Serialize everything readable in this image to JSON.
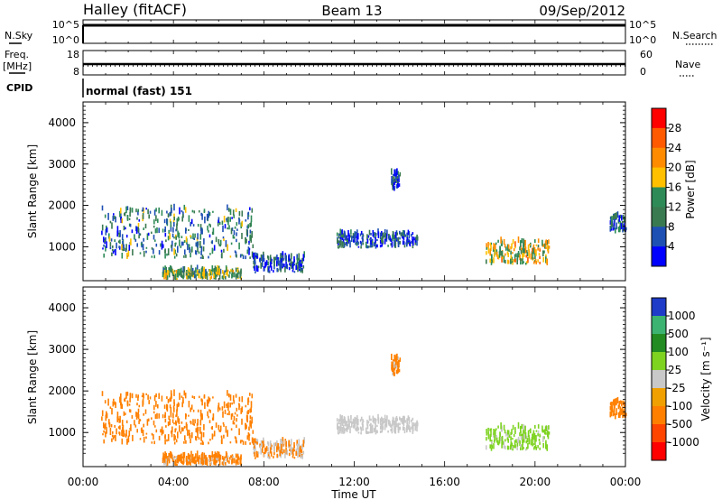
{
  "header": {
    "station": "Halley (fitACF)",
    "beam": "Beam 13",
    "date": "09/Sep/2012"
  },
  "params": {
    "nsky_label": "N.Sky",
    "nsky_ticks": [
      "10^5",
      "10^0"
    ],
    "nsearch_label": "N.Search",
    "nsearch_ticks": [
      "10^5",
      "10^0"
    ],
    "freq_label": "Freq.",
    "freq_unit": "[MHz]",
    "freq_ticks": [
      "18",
      "8"
    ],
    "nave_label": "Nave",
    "nave_ticks": [
      "60",
      "0"
    ],
    "cpid_label": "CPID",
    "cpid_value": "normal (fast) 151"
  },
  "axes": {
    "ylabel": "Slant Range [km]",
    "y_ticks": [
      "4000",
      "3000",
      "2000",
      "1000"
    ],
    "x_ticks": [
      "00:00",
      "04:00",
      "08:00",
      "12:00",
      "16:00",
      "20:00",
      "00:00"
    ],
    "xlabel": "Time UT"
  },
  "power_scale": {
    "label": "Power [dB]",
    "ticks": [
      "28",
      "24",
      "20",
      "16",
      "12",
      "8",
      "4"
    ],
    "colors": [
      "#ff0000",
      "#ff5a00",
      "#ff8c00",
      "#ffc000",
      "#2e8b57",
      "#3a7a50",
      "#1e50b4",
      "#0000ff"
    ]
  },
  "velocity_scale": {
    "label": "Velocity [m s⁻¹]",
    "ticks": [
      "1000",
      "500",
      "100",
      "25",
      "-25",
      "-100",
      "-500",
      "-1000"
    ],
    "colors": [
      "#1e3cc8",
      "#3cb371",
      "#228b22",
      "#7ed321",
      "#c8c8c8",
      "#f0a000",
      "#ff8000",
      "#ff4500",
      "#ff0000"
    ]
  },
  "chart_data": {
    "type": "heatmap",
    "panels": [
      "Power [dB]",
      "Velocity [m s⁻¹]"
    ],
    "x_range_hours": [
      0,
      24
    ],
    "y_range_km": [
      180,
      4500
    ],
    "echo_regions": [
      {
        "t_start": 0.8,
        "t_end": 7.5,
        "r_min": 700,
        "r_max": 1900,
        "power_db": 10,
        "velocity": -200
      },
      {
        "t_start": 3.5,
        "t_end": 7.0,
        "r_min": 200,
        "r_max": 400,
        "power_db": 14,
        "velocity": -100
      },
      {
        "t_start": 7.5,
        "t_end": 9.8,
        "r_min": 350,
        "r_max": 750,
        "power_db": 6,
        "velocity": -60
      },
      {
        "t_start": 11.2,
        "t_end": 14.8,
        "r_min": 950,
        "r_max": 1300,
        "power_db": 6,
        "velocity": 0
      },
      {
        "t_start": 13.6,
        "t_end": 14.0,
        "r_min": 2350,
        "r_max": 2750,
        "power_db": 6,
        "velocity": -100
      },
      {
        "t_start": 17.8,
        "t_end": 20.6,
        "r_min": 550,
        "r_max": 1100,
        "power_db": 18,
        "velocity": 100
      },
      {
        "t_start": 23.3,
        "t_end": 24.0,
        "r_min": 1300,
        "r_max": 1700,
        "power_db": 8,
        "velocity": -200
      }
    ]
  }
}
